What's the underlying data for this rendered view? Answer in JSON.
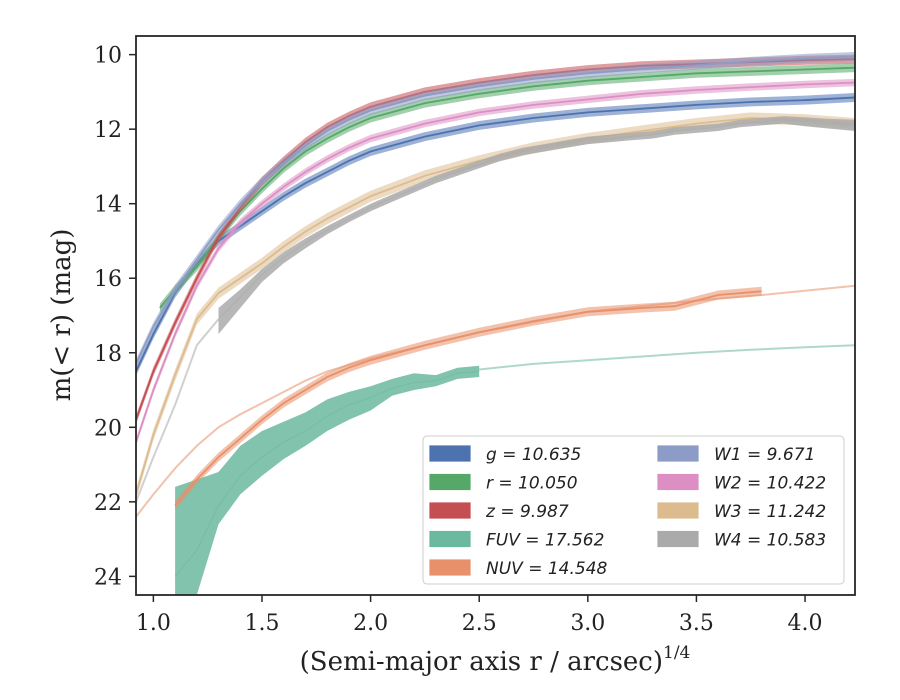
{
  "chart_data": {
    "type": "line",
    "title": "",
    "xlabel": "(Semi-major axis r / arcsec)",
    "xlabel_sup": "1/4",
    "ylabel": "m(< r) (mag)",
    "xlim": [
      0.92,
      4.23
    ],
    "ylim": [
      24.5,
      9.5
    ],
    "y_inverted": true,
    "x_ticks": [
      1.0,
      1.5,
      2.0,
      2.5,
      3.0,
      3.5,
      4.0
    ],
    "x_tick_labels": [
      "1.0",
      "1.5",
      "2.0",
      "2.5",
      "3.0",
      "3.5",
      "4.0"
    ],
    "y_ticks": [
      10,
      12,
      14,
      16,
      18,
      20,
      22,
      24
    ],
    "y_tick_labels": [
      "10",
      "12",
      "14",
      "16",
      "18",
      "20",
      "22",
      "24"
    ],
    "grid": false,
    "legend_position": "bottom-right",
    "legend": [
      {
        "label": "g = 10.635",
        "color": "#4c72b0"
      },
      {
        "label": "r = 10.050",
        "color": "#55a868"
      },
      {
        "label": "z = 9.987",
        "color": "#c44e52"
      },
      {
        "label": "FUV = 17.562",
        "color": "#6bb99e"
      },
      {
        "label": "NUV = 14.548",
        "color": "#e8906a"
      },
      {
        "label": "W1 = 9.671",
        "color": "#8c9cc6"
      },
      {
        "label": "W2 = 10.422",
        "color": "#dd8fc4"
      },
      {
        "label": "W3 = 11.242",
        "color": "#dcbc8f"
      },
      {
        "label": "W4 = 10.583",
        "color": "#aaaaaa"
      }
    ],
    "series": [
      {
        "color": "#4c72b0",
        "band_width": 0.12,
        "x": [
          0.92,
          1.0,
          1.1,
          1.2,
          1.3,
          1.4,
          1.5,
          1.6,
          1.7,
          1.8,
          1.9,
          2.0,
          2.25,
          2.5,
          2.75,
          3.0,
          3.25,
          3.5,
          3.75,
          4.0,
          4.23
        ],
        "y": [
          18.5,
          17.5,
          16.4,
          15.6,
          15.0,
          14.6,
          14.2,
          13.8,
          13.45,
          13.15,
          12.85,
          12.6,
          12.2,
          11.9,
          11.7,
          11.55,
          11.45,
          11.35,
          11.27,
          11.22,
          11.15
        ],
        "faint_x": [
          4.0,
          4.23
        ],
        "faint_y": [
          11.22,
          11.15
        ]
      },
      {
        "color": "#55a868",
        "band_width": 0.12,
        "x": [
          1.03,
          1.1,
          1.2,
          1.3,
          1.4,
          1.5,
          1.6,
          1.7,
          1.8,
          1.9,
          2.0,
          2.25,
          2.5,
          2.75,
          3.0,
          3.25,
          3.5,
          3.75,
          4.0,
          4.23
        ],
        "y": [
          16.8,
          16.3,
          15.7,
          14.9,
          14.2,
          13.6,
          13.05,
          12.6,
          12.25,
          11.95,
          11.7,
          11.3,
          11.05,
          10.85,
          10.7,
          10.6,
          10.5,
          10.45,
          10.4,
          10.35
        ]
      },
      {
        "color": "#c44e52",
        "band_width": 0.12,
        "x": [
          0.92,
          1.0,
          1.1,
          1.2,
          1.3,
          1.4,
          1.5,
          1.6,
          1.7,
          1.8,
          1.9,
          2.0,
          2.25,
          2.5,
          2.75,
          3.0,
          3.25,
          3.5,
          3.75,
          4.0,
          4.23
        ],
        "y": [
          19.8,
          18.5,
          17.2,
          16.0,
          14.9,
          14.1,
          13.4,
          12.85,
          12.35,
          11.95,
          11.65,
          11.4,
          11.0,
          10.75,
          10.55,
          10.4,
          10.3,
          10.25,
          10.2,
          10.15,
          10.12
        ]
      },
      {
        "color": "#6bb99e",
        "band": true,
        "x": [
          1.1,
          1.2,
          1.3,
          1.4,
          1.5,
          1.6,
          1.7,
          1.8,
          1.9,
          2.0,
          2.1,
          2.2,
          2.3,
          2.4,
          2.5
        ],
        "y": [
          24.0,
          23.3,
          22.1,
          21.3,
          20.8,
          20.4,
          20.1,
          19.7,
          19.4,
          19.2,
          18.95,
          18.8,
          18.75,
          18.55,
          18.5
        ],
        "lo": [
          21.6,
          21.4,
          21.2,
          20.5,
          20.1,
          19.85,
          19.6,
          19.25,
          19.05,
          18.9,
          18.7,
          18.55,
          18.6,
          18.4,
          18.35
        ],
        "hi": [
          24.5,
          24.5,
          22.6,
          21.8,
          21.3,
          20.85,
          20.5,
          20.1,
          19.8,
          19.55,
          19.15,
          19.0,
          18.9,
          18.7,
          18.65
        ],
        "faint_x": [
          2.5,
          2.75,
          3.0,
          3.25,
          3.5,
          3.75,
          4.0,
          4.23
        ],
        "faint_y": [
          18.45,
          18.3,
          18.2,
          18.1,
          18.0,
          17.92,
          17.85,
          17.8
        ]
      },
      {
        "color": "#e8906a",
        "band_width": 0.12,
        "x": [
          1.1,
          1.2,
          1.3,
          1.4,
          1.5,
          1.6,
          1.7,
          1.8,
          1.9,
          2.0,
          2.25,
          2.5,
          2.75,
          3.0,
          3.25,
          3.4,
          3.5,
          3.6,
          3.8
        ],
        "y": [
          22.1,
          21.4,
          20.8,
          20.3,
          19.8,
          19.35,
          19.0,
          18.65,
          18.4,
          18.2,
          17.8,
          17.45,
          17.15,
          16.9,
          16.8,
          16.75,
          16.6,
          16.45,
          16.35
        ],
        "faint_x": [
          0.92,
          1.0,
          1.1,
          1.2,
          1.3,
          1.4,
          1.5,
          1.6,
          1.7,
          1.8,
          2.0,
          2.5,
          3.0,
          3.5,
          3.8,
          4.23
        ],
        "faint_y": [
          22.4,
          21.8,
          21.1,
          20.5,
          20.0,
          19.65,
          19.35,
          19.05,
          18.75,
          18.5,
          18.15,
          17.45,
          16.9,
          16.6,
          16.45,
          16.2
        ]
      },
      {
        "color": "#8c9cc6",
        "band_width": 0.12,
        "x": [
          0.92,
          1.0,
          1.1,
          1.2,
          1.3,
          1.4,
          1.5,
          1.6,
          1.7,
          1.8,
          1.9,
          2.0,
          2.25,
          2.5,
          2.75,
          3.0,
          3.25,
          3.5,
          3.75,
          4.0,
          4.23
        ],
        "y": [
          18.3,
          17.3,
          16.3,
          15.5,
          14.7,
          14.0,
          13.4,
          12.9,
          12.45,
          12.05,
          11.75,
          11.5,
          11.1,
          10.85,
          10.65,
          10.5,
          10.38,
          10.28,
          10.18,
          10.1,
          10.05
        ]
      },
      {
        "color": "#dd8fc4",
        "band_width": 0.1,
        "x": [
          0.92,
          1.0,
          1.1,
          1.2,
          1.3,
          1.4,
          1.5,
          1.6,
          1.7,
          1.8,
          1.9,
          2.0,
          2.25,
          2.5,
          2.75,
          3.0,
          3.25,
          3.5,
          3.75,
          4.0,
          4.23
        ],
        "y": [
          20.4,
          19.0,
          17.5,
          16.2,
          15.2,
          14.5,
          14.0,
          13.55,
          13.15,
          12.8,
          12.5,
          12.25,
          11.85,
          11.55,
          11.35,
          11.2,
          11.05,
          10.95,
          10.87,
          10.8,
          10.75
        ]
      },
      {
        "color": "#dcbc8f",
        "band_width": 0.15,
        "x": [
          0.92,
          1.0,
          1.1,
          1.2,
          1.3,
          1.4,
          1.5,
          1.6,
          1.7,
          1.8,
          1.9,
          2.0,
          2.25,
          2.5,
          2.75,
          3.0,
          3.25,
          3.5,
          3.75,
          4.0,
          4.23
        ],
        "y": [
          21.8,
          20.2,
          18.6,
          17.1,
          16.4,
          16.0,
          15.6,
          15.15,
          14.75,
          14.4,
          14.1,
          13.8,
          13.25,
          12.85,
          12.5,
          12.25,
          12.05,
          11.85,
          11.7,
          11.75,
          11.85
        ]
      },
      {
        "color": "#aaaaaa",
        "band": true,
        "x": [
          1.3,
          1.4,
          1.5,
          1.6,
          1.7,
          1.8,
          1.9,
          2.0,
          2.1,
          2.2,
          2.3,
          2.4,
          2.5,
          2.6,
          2.7,
          2.8,
          2.9,
          3.0,
          3.1,
          3.2,
          3.3,
          3.4,
          3.5,
          3.6,
          3.7,
          3.8,
          3.9,
          4.0,
          4.1,
          4.23
        ],
        "y": [
          17.1,
          16.5,
          15.9,
          15.45,
          15.05,
          14.7,
          14.4,
          14.1,
          13.85,
          13.6,
          13.35,
          13.15,
          12.95,
          12.75,
          12.6,
          12.5,
          12.4,
          12.3,
          12.25,
          12.2,
          12.15,
          12.05,
          12.0,
          11.95,
          11.85,
          11.8,
          11.75,
          11.8,
          11.85,
          11.9
        ],
        "lo": [
          16.8,
          16.3,
          15.75,
          15.3,
          14.93,
          14.6,
          14.3,
          14.0,
          13.75,
          13.5,
          13.25,
          13.05,
          12.85,
          12.65,
          12.5,
          12.4,
          12.3,
          12.2,
          12.15,
          12.1,
          12.05,
          11.95,
          11.9,
          11.85,
          11.75,
          11.7,
          11.65,
          11.68,
          11.72,
          11.75
        ],
        "hi": [
          17.5,
          16.8,
          16.1,
          15.6,
          15.2,
          14.82,
          14.5,
          14.2,
          13.95,
          13.7,
          13.45,
          13.25,
          13.05,
          12.85,
          12.7,
          12.6,
          12.5,
          12.4,
          12.35,
          12.3,
          12.25,
          12.15,
          12.1,
          12.05,
          11.95,
          11.9,
          11.85,
          11.92,
          11.98,
          12.05
        ],
        "faint_x": [
          0.92,
          1.0,
          1.1,
          1.2,
          1.3
        ],
        "faint_y": [
          22.0,
          20.8,
          19.4,
          17.8,
          17.1
        ]
      }
    ]
  }
}
